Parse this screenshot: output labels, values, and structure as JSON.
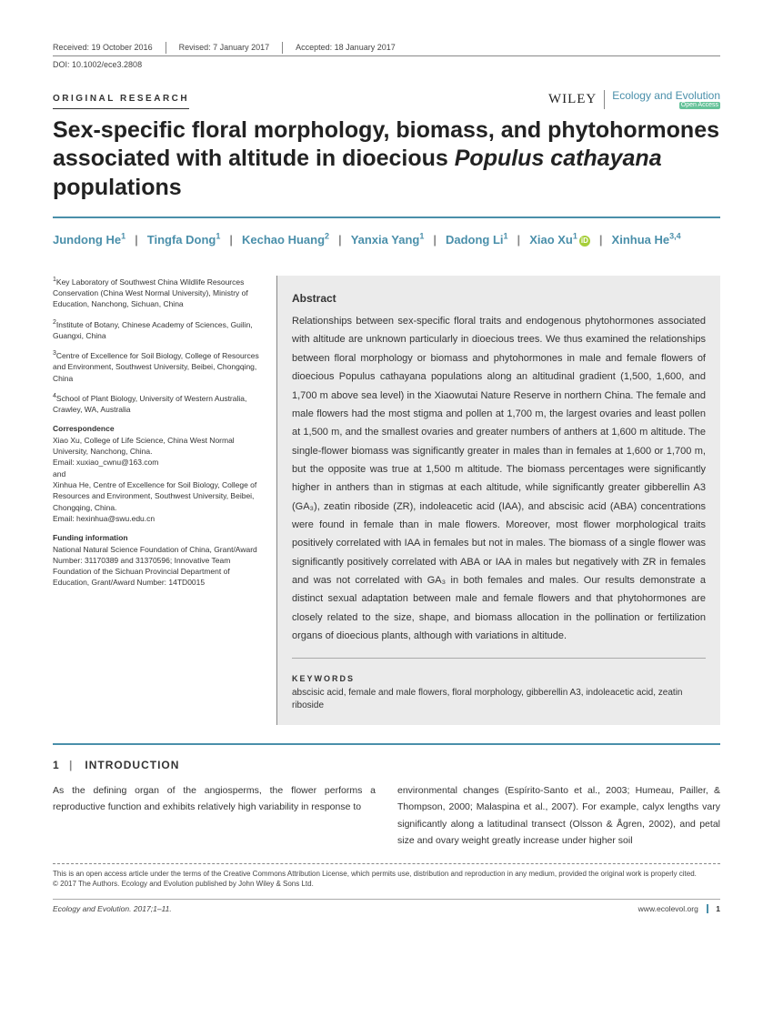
{
  "header": {
    "received": "Received: 19 October 2016",
    "revised": "Revised: 7 January 2017",
    "accepted": "Accepted: 18 January 2017",
    "doi": "DOI: 10.1002/ece3.2808"
  },
  "articleType": "ORIGINAL RESEARCH",
  "publisher": "WILEY",
  "journalName": "Ecology and Evolution",
  "journalBadge": "Open Access",
  "title": {
    "pre": "Sex-specific floral morphology, biomass, and phytohormones associated with altitude in dioecious ",
    "species": "Populus cathayana",
    "post": " populations"
  },
  "authors": [
    {
      "name": "Jundong He",
      "aff": "1"
    },
    {
      "name": "Tingfa Dong",
      "aff": "1"
    },
    {
      "name": "Kechao Huang",
      "aff": "2"
    },
    {
      "name": "Yanxia Yang",
      "aff": "1"
    },
    {
      "name": "Dadong Li",
      "aff": "1"
    },
    {
      "name": "Xiao Xu",
      "aff": "1",
      "orcid": true
    },
    {
      "name": "Xinhua He",
      "aff": "3,4"
    }
  ],
  "affiliations": [
    {
      "num": "1",
      "text": "Key Laboratory of Southwest China Wildlife Resources Conservation (China West Normal University), Ministry of Education, Nanchong, Sichuan, China"
    },
    {
      "num": "2",
      "text": "Institute of Botany, Chinese Academy of Sciences, Guilin, Guangxi, China"
    },
    {
      "num": "3",
      "text": "Centre of Excellence for Soil Biology, College of Resources and Environment, Southwest University, Beibei, Chongqing, China"
    },
    {
      "num": "4",
      "text": "School of Plant Biology, University of Western Australia, Crawley, WA, Australia"
    }
  ],
  "correspondence": {
    "heading": "Correspondence",
    "text1": "Xiao Xu, College of Life Science, China West Normal University, Nanchong, China.",
    "email1": "Email: xuxiao_cwnu@163.com",
    "and": "and",
    "text2": "Xinhua He, Centre of Excellence for Soil Biology, College of Resources and Environment, Southwest University, Beibei, Chongqing, China.",
    "email2": "Email: hexinhua@swu.edu.cn"
  },
  "funding": {
    "heading": "Funding information",
    "text": "National Natural Science Foundation of China, Grant/Award Number: 31170389 and 31370596; Innovative Team Foundation of the Sichuan Provincial Department of Education, Grant/Award Number: 14TD0015"
  },
  "abstract": {
    "heading": "Abstract",
    "text": "Relationships between sex-specific floral traits and endogenous phytohormones associated with altitude are unknown particularly in dioecious trees. We thus examined the relationships between floral morphology or biomass and phytohormones in male and female flowers of dioecious Populus cathayana populations along an altitudinal gradient (1,500, 1,600, and 1,700 m above sea level) in the Xiaowutai Nature Reserve in northern China. The female and male flowers had the most stigma and pollen at 1,700 m, the largest ovaries and least pollen at 1,500 m, and the smallest ovaries and greater numbers of anthers at 1,600 m altitude. The single-flower biomass was significantly greater in males than in females at 1,600 or 1,700 m, but the opposite was true at 1,500 m altitude. The biomass percentages were significantly higher in anthers than in stigmas at each altitude, while significantly greater gibberellin A3 (GA₃), zeatin riboside (ZR), indoleacetic acid (IAA), and abscisic acid (ABA) concentrations were found in female than in male flowers. Moreover, most flower morphological traits positively correlated with IAA in females but not in males. The biomass of a single flower was significantly positively correlated with ABA or IAA in males but negatively with ZR in females and was not correlated with GA₃ in both females and males. Our results demonstrate a distinct sexual adaptation between male and female flowers and that phytohormones are closely related to the size, shape, and biomass allocation in the pollination or fertilization organs of dioecious plants, although with variations in altitude.",
    "kwHeading": "KEYWORDS",
    "keywords": "abscisic acid, female and male flowers, floral morphology, gibberellin A3, indoleacetic acid, zeatin riboside"
  },
  "section": {
    "num": "1",
    "title": "INTRODUCTION",
    "leftText": "As the defining organ of the angiosperms, the flower performs a reproductive function and exhibits relatively high variability in response to",
    "rightText": "environmental changes (Espírito-Santo et al., 2003; Humeau, Pailler, & Thompson, 2000; Malaspina et al., 2007). For example, calyx lengths vary significantly along a latitudinal transect (Olsson & Ågren, 2002), and petal size and ovary weight greatly increase under higher soil"
  },
  "footer": {
    "license": "This is an open access article under the terms of the Creative Commons Attribution License, which permits use, distribution and reproduction in any medium, provided the original work is properly cited.",
    "copyright": "© 2017 The Authors. Ecology and Evolution published by John Wiley & Sons Ltd.",
    "issue": "Ecology and Evolution. 2017;1–11.",
    "url": "www.ecolevol.org",
    "page": "1"
  }
}
